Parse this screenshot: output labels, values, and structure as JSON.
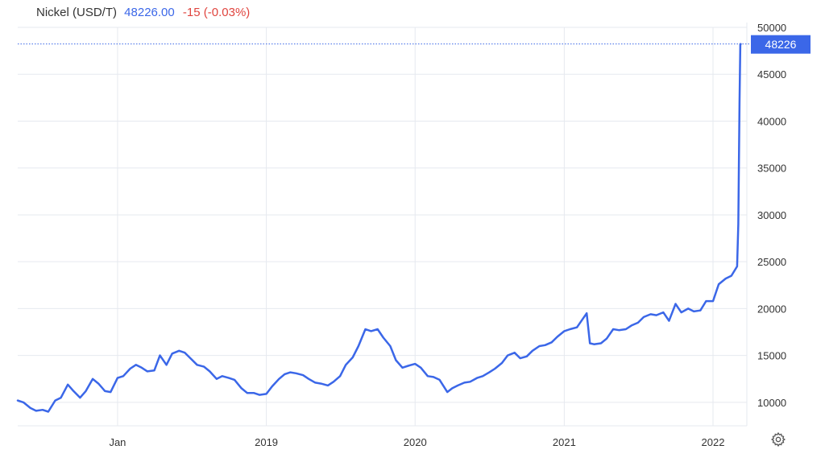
{
  "header": {
    "name": "Nickel (USD/T)",
    "price": "48226.00",
    "change": "-15 (-0.03%)"
  },
  "colors": {
    "line": "#3b67e8",
    "grid": "#e6e9ef",
    "axis_text": "#333333",
    "change_negative": "#e0443e",
    "badge_bg": "#3b67e8",
    "badge_text": "#ffffff"
  },
  "icons": {
    "settings": "gear-icon"
  },
  "chart_data": {
    "type": "line",
    "title": "Nickel (USD/T)",
    "xlabel": "",
    "ylabel": "",
    "ylim": [
      7500,
      50000
    ],
    "x_range": [
      "2017-05-01",
      "2022-03-25"
    ],
    "x_ticks": [
      {
        "label": "Jan",
        "date": "2018-01-01"
      },
      {
        "label": "2019",
        "date": "2019-01-01"
      },
      {
        "label": "2020",
        "date": "2020-01-01"
      },
      {
        "label": "2021",
        "date": "2021-01-01"
      },
      {
        "label": "2022",
        "date": "2022-01-01"
      }
    ],
    "y_ticks": [
      10000,
      15000,
      20000,
      25000,
      30000,
      35000,
      40000,
      45000,
      50000
    ],
    "y_tick_labels": [
      "10000",
      "15000",
      "20000",
      "25000",
      "30000",
      "35000",
      "40000",
      "45000",
      "50000"
    ],
    "grid": true,
    "last_value": 48226,
    "last_value_label": "48226",
    "series": [
      {
        "points": [
          [
            "2017-05-01",
            10200
          ],
          [
            "2017-05-15",
            10000
          ],
          [
            "2017-06-01",
            9400
          ],
          [
            "2017-06-15",
            9100
          ],
          [
            "2017-07-01",
            9200
          ],
          [
            "2017-07-15",
            9000
          ],
          [
            "2017-08-01",
            10200
          ],
          [
            "2017-08-15",
            10500
          ],
          [
            "2017-09-01",
            11900
          ],
          [
            "2017-09-15",
            11200
          ],
          [
            "2017-10-01",
            10500
          ],
          [
            "2017-10-15",
            11200
          ],
          [
            "2017-11-01",
            12500
          ],
          [
            "2017-11-15",
            12000
          ],
          [
            "2017-12-01",
            11200
          ],
          [
            "2017-12-15",
            11100
          ],
          [
            "2018-01-01",
            12600
          ],
          [
            "2018-01-15",
            12800
          ],
          [
            "2018-02-01",
            13600
          ],
          [
            "2018-02-15",
            14000
          ],
          [
            "2018-03-01",
            13700
          ],
          [
            "2018-03-15",
            13300
          ],
          [
            "2018-04-01",
            13400
          ],
          [
            "2018-04-15",
            15000
          ],
          [
            "2018-05-01",
            14000
          ],
          [
            "2018-05-15",
            15200
          ],
          [
            "2018-06-01",
            15500
          ],
          [
            "2018-06-15",
            15300
          ],
          [
            "2018-07-01",
            14600
          ],
          [
            "2018-07-15",
            14000
          ],
          [
            "2018-08-01",
            13800
          ],
          [
            "2018-08-15",
            13300
          ],
          [
            "2018-09-01",
            12500
          ],
          [
            "2018-09-15",
            12800
          ],
          [
            "2018-10-01",
            12600
          ],
          [
            "2018-10-15",
            12400
          ],
          [
            "2018-11-01",
            11500
          ],
          [
            "2018-11-15",
            11000
          ],
          [
            "2018-12-01",
            11000
          ],
          [
            "2018-12-15",
            10800
          ],
          [
            "2019-01-01",
            10900
          ],
          [
            "2019-01-15",
            11700
          ],
          [
            "2019-02-01",
            12500
          ],
          [
            "2019-02-15",
            13000
          ],
          [
            "2019-03-01",
            13200
          ],
          [
            "2019-03-15",
            13100
          ],
          [
            "2019-04-01",
            12900
          ],
          [
            "2019-04-15",
            12500
          ],
          [
            "2019-05-01",
            12100
          ],
          [
            "2019-05-15",
            12000
          ],
          [
            "2019-06-01",
            11800
          ],
          [
            "2019-06-15",
            12200
          ],
          [
            "2019-07-01",
            12800
          ],
          [
            "2019-07-15",
            14000
          ],
          [
            "2019-08-01",
            14800
          ],
          [
            "2019-08-15",
            16000
          ],
          [
            "2019-09-01",
            17800
          ],
          [
            "2019-09-15",
            17600
          ],
          [
            "2019-10-01",
            17800
          ],
          [
            "2019-10-15",
            16900
          ],
          [
            "2019-11-01",
            16000
          ],
          [
            "2019-11-15",
            14500
          ],
          [
            "2019-12-01",
            13700
          ],
          [
            "2019-12-15",
            13900
          ],
          [
            "2020-01-01",
            14100
          ],
          [
            "2020-01-15",
            13700
          ],
          [
            "2020-02-01",
            12800
          ],
          [
            "2020-02-15",
            12700
          ],
          [
            "2020-03-01",
            12400
          ],
          [
            "2020-03-20",
            11100
          ],
          [
            "2020-04-01",
            11500
          ],
          [
            "2020-04-15",
            11800
          ],
          [
            "2020-05-01",
            12100
          ],
          [
            "2020-05-15",
            12200
          ],
          [
            "2020-06-01",
            12600
          ],
          [
            "2020-06-15",
            12800
          ],
          [
            "2020-07-01",
            13200
          ],
          [
            "2020-07-15",
            13600
          ],
          [
            "2020-08-01",
            14200
          ],
          [
            "2020-08-15",
            15000
          ],
          [
            "2020-09-01",
            15300
          ],
          [
            "2020-09-15",
            14700
          ],
          [
            "2020-10-01",
            14900
          ],
          [
            "2020-10-15",
            15500
          ],
          [
            "2020-11-01",
            16000
          ],
          [
            "2020-11-15",
            16100
          ],
          [
            "2020-12-01",
            16400
          ],
          [
            "2020-12-15",
            17000
          ],
          [
            "2021-01-01",
            17600
          ],
          [
            "2021-01-15",
            17800
          ],
          [
            "2021-02-01",
            18000
          ],
          [
            "2021-02-25",
            19500
          ],
          [
            "2021-03-05",
            16300
          ],
          [
            "2021-03-15",
            16200
          ],
          [
            "2021-04-01",
            16300
          ],
          [
            "2021-04-15",
            16800
          ],
          [
            "2021-05-01",
            17800
          ],
          [
            "2021-05-15",
            17700
          ],
          [
            "2021-06-01",
            17800
          ],
          [
            "2021-06-15",
            18200
          ],
          [
            "2021-07-01",
            18500
          ],
          [
            "2021-07-15",
            19100
          ],
          [
            "2021-08-01",
            19400
          ],
          [
            "2021-08-15",
            19300
          ],
          [
            "2021-09-01",
            19600
          ],
          [
            "2021-09-15",
            18700
          ],
          [
            "2021-10-01",
            20500
          ],
          [
            "2021-10-15",
            19600
          ],
          [
            "2021-11-01",
            20000
          ],
          [
            "2021-11-15",
            19700
          ],
          [
            "2021-12-01",
            19800
          ],
          [
            "2021-12-15",
            20800
          ],
          [
            "2022-01-01",
            20800
          ],
          [
            "2022-01-15",
            22600
          ],
          [
            "2022-02-01",
            23200
          ],
          [
            "2022-02-15",
            23500
          ],
          [
            "2022-03-01",
            24500
          ],
          [
            "2022-03-04",
            29000
          ],
          [
            "2022-03-07",
            42000
          ],
          [
            "2022-03-09",
            48226
          ],
          [
            "2022-03-10",
            48226
          ]
        ]
      }
    ]
  }
}
